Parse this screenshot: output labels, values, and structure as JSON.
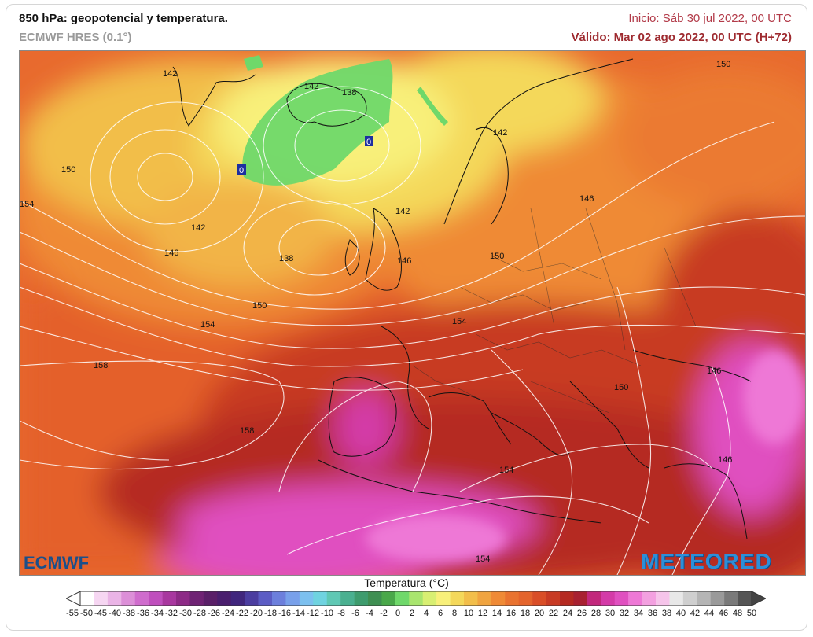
{
  "header": {
    "title": "850 hPa: geopotencial y temperatura.",
    "model": "ECMWF HRES (0.1°)",
    "init": "Inicio: Sáb 30 jul 2022, 00 UTC",
    "valid": "Válido: Mar 02 ago 2022, 00 UTC (H+72)"
  },
  "map": {
    "contour_labels": [
      "142",
      "142",
      "138",
      "150",
      "154",
      "142",
      "142",
      "146",
      "138",
      "142",
      "146",
      "150",
      "146",
      "150",
      "154",
      "150",
      "154",
      "158",
      "158",
      "146",
      "150",
      "146",
      "154",
      "154",
      "0",
      "0"
    ],
    "colors": {
      "ocean_warm": "#e4642c",
      "ocean_mid": "#ef8a36",
      "cool_yellow": "#f4d85a",
      "pale_yellow": "#f8f07a",
      "green": "#6fd86a",
      "dark_red": "#b52a22",
      "magenta": "#e050c0",
      "pink": "#ee78d6"
    }
  },
  "legend": {
    "title": "Temperatura (°C)",
    "labels": [
      "-55",
      "-50",
      "-45",
      "-40",
      "-38",
      "-36",
      "-34",
      "-32",
      "-30",
      "-28",
      "-26",
      "-24",
      "-22",
      "-20",
      "-18",
      "-16",
      "-14",
      "-12",
      "-10",
      "-8",
      "-6",
      "-4",
      "-2",
      "0",
      "2",
      "4",
      "6",
      "8",
      "10",
      "12",
      "14",
      "16",
      "18",
      "20",
      "22",
      "24",
      "26",
      "28",
      "30",
      "32",
      "34",
      "36",
      "38",
      "40",
      "42",
      "44",
      "46",
      "48",
      "50"
    ],
    "colors": [
      "#ffffff",
      "#f6d6f2",
      "#eab4e6",
      "#dc8fd8",
      "#cf6ccd",
      "#bf4fbd",
      "#a8379f",
      "#8d2a86",
      "#6f2374",
      "#5a1f68",
      "#4a1f6e",
      "#40267d",
      "#4b3da0",
      "#5b5cc4",
      "#6c7fdc",
      "#78a0ea",
      "#7cc0ef",
      "#6fd3e0",
      "#5fc8b4",
      "#4ab090",
      "#3e9c6e",
      "#3f8f52",
      "#4aa84a",
      "#6fd86a",
      "#a9e56e",
      "#d8ef72",
      "#f8f07a",
      "#f4d85a",
      "#f2be4a",
      "#f0a440",
      "#ef8a36",
      "#e97330",
      "#e4642c",
      "#d94e27",
      "#c83b24",
      "#b52a22",
      "#a82131",
      "#c2287c",
      "#d43ba8",
      "#e050c0",
      "#ee78d6",
      "#f3a0e0",
      "#f6c4ea",
      "#e8e8e8",
      "#cfcfcf",
      "#b5b5b5",
      "#9a9a9a",
      "#7a7a7a",
      "#555555"
    ]
  },
  "logos": {
    "left": "ECMWF",
    "right": "METEORED"
  }
}
